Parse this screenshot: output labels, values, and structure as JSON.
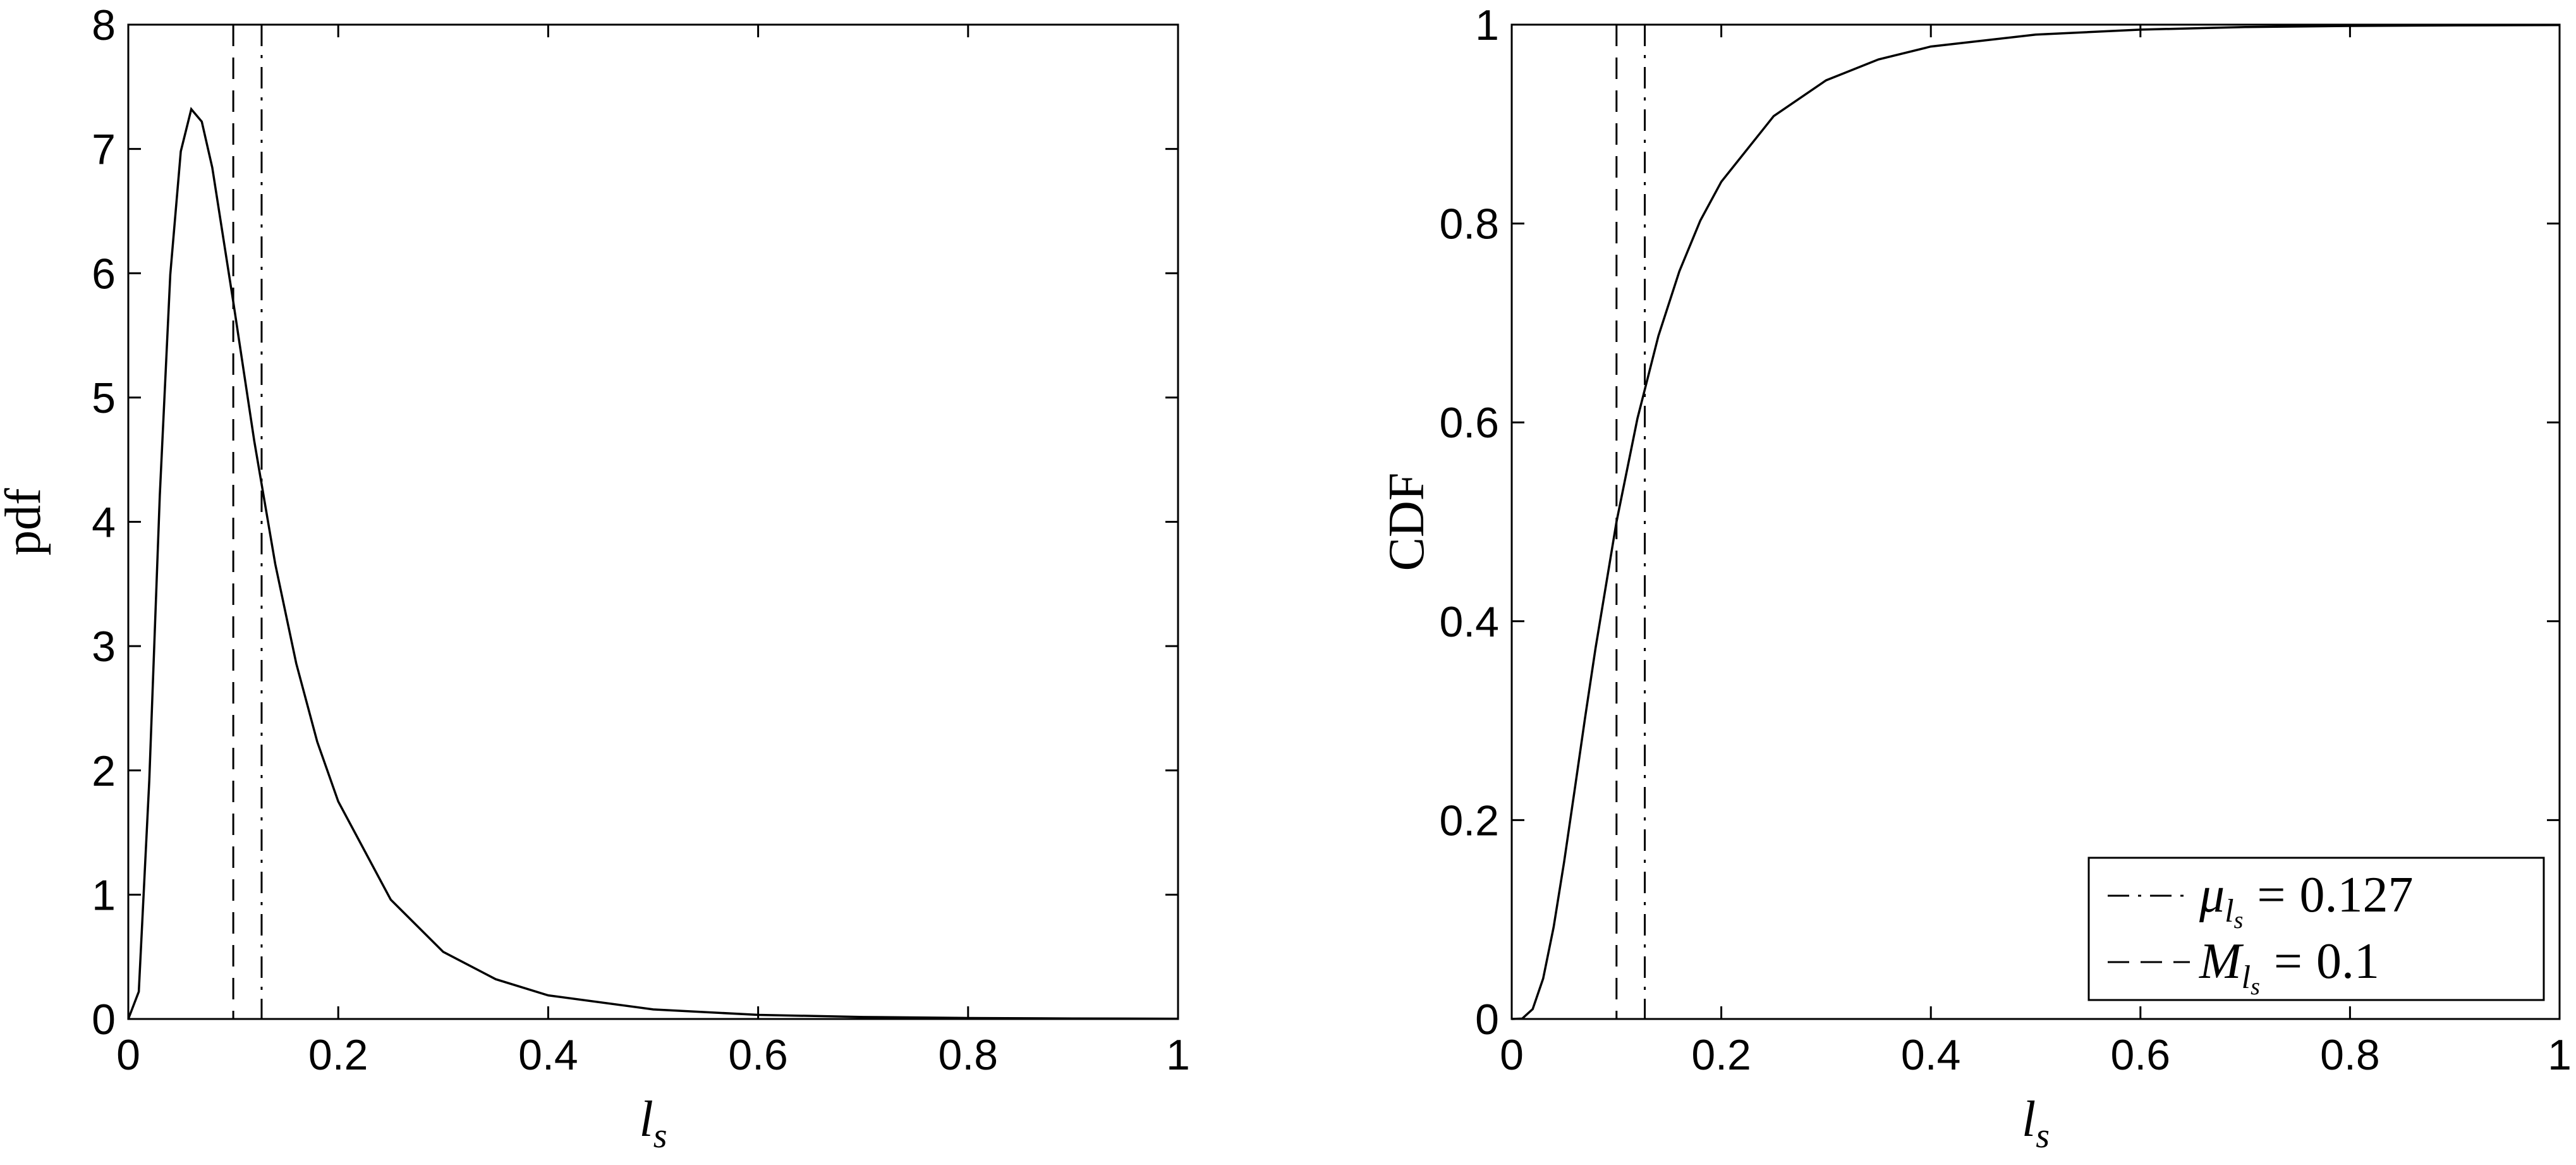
{
  "chart_data": [
    {
      "type": "line",
      "ylabel": "pdf",
      "xlabel": {
        "symbol": "l",
        "subscript": "s"
      },
      "x": [
        0,
        0.01,
        0.02,
        0.03,
        0.04,
        0.05,
        0.06,
        0.07,
        0.08,
        0.1,
        0.12,
        0.14,
        0.16,
        0.18,
        0.2,
        0.25,
        0.3,
        0.35,
        0.4,
        0.5,
        0.6,
        0.7,
        0.8,
        0.9,
        1.0
      ],
      "series": [
        {
          "color": "#000000",
          "values": [
            0,
            0.22,
            1.92,
            4.21,
            5.99,
            6.98,
            7.32,
            7.22,
            6.85,
            5.77,
            4.65,
            3.66,
            2.86,
            2.23,
            1.75,
            0.96,
            0.54,
            0.32,
            0.19,
            0.077,
            0.033,
            0.016,
            0.0078,
            0.0041,
            0.0022
          ]
        }
      ],
      "reference_lines": [
        {
          "x": 0.127,
          "style": "dashdot"
        },
        {
          "x": 0.1,
          "style": "dashed"
        }
      ],
      "xlim": [
        0,
        1
      ],
      "xticks": [
        0,
        0.2,
        0.4,
        0.6,
        0.8,
        1
      ],
      "ylim": [
        0,
        8
      ],
      "yticks": [
        0,
        1,
        2,
        3,
        4,
        5,
        6,
        7,
        8
      ]
    },
    {
      "type": "line",
      "ylabel": "CDF",
      "xlabel": {
        "symbol": "l",
        "subscript": "s"
      },
      "x": [
        0,
        0.01,
        0.02,
        0.03,
        0.04,
        0.05,
        0.06,
        0.07,
        0.08,
        0.1,
        0.12,
        0.14,
        0.16,
        0.18,
        0.2,
        0.25,
        0.3,
        0.35,
        0.4,
        0.5,
        0.6,
        0.7,
        0.8,
        0.9,
        1.0
      ],
      "series": [
        {
          "color": "#000000",
          "values": [
            0,
            0.0004,
            0.0099,
            0.0407,
            0.0924,
            0.158,
            0.23,
            0.303,
            0.373,
            0.5,
            0.604,
            0.687,
            0.752,
            0.803,
            0.842,
            0.908,
            0.944,
            0.965,
            0.978,
            0.99,
            0.995,
            0.9976,
            0.9987,
            0.9993,
            0.9996
          ]
        }
      ],
      "reference_lines": [
        {
          "x": 0.127,
          "style": "dashdot",
          "label": {
            "symbol": "μ",
            "subscript": "l",
            "subsubscript": "s",
            "relation": "="
          }
        },
        {
          "x": 0.1,
          "style": "dashed",
          "label": {
            "symbol": "M",
            "subscript": "l",
            "subsubscript": "s",
            "relation": "="
          }
        }
      ],
      "legend": "lower right",
      "xlim": [
        0,
        1
      ],
      "xticks": [
        0,
        0.2,
        0.4,
        0.6,
        0.8,
        1
      ],
      "ylim": [
        0,
        1
      ],
      "yticks": [
        0,
        0.2,
        0.4,
        0.6,
        0.8,
        1
      ]
    }
  ]
}
